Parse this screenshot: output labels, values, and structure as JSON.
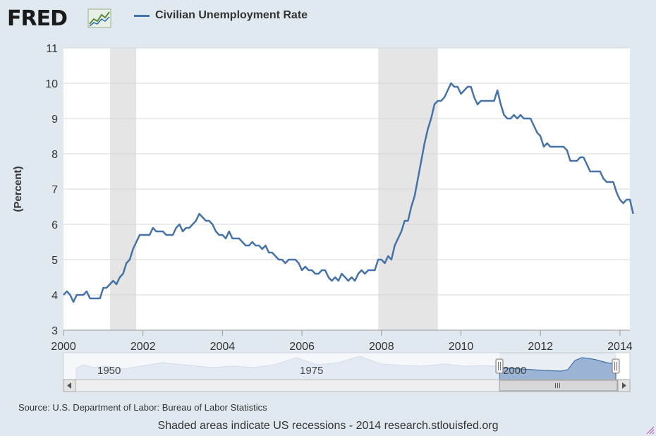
{
  "logo": {
    "text": "FRED",
    "mark": "chart-trend-icon"
  },
  "legend": {
    "label": "Civilian Unemployment Rate",
    "color": "#4572a7"
  },
  "footer": {
    "source": "Source: U.S. Department of Labor: Bureau of Labor Statistics",
    "note": "Shaded areas indicate US recessions - 2014 research.stlouisfed.org"
  },
  "navigator": {
    "labels": [
      "1950",
      "1975",
      "2000"
    ],
    "handle_icon": "grip-icon",
    "scroll_left_icon": "arrow-left-icon",
    "scroll_right_icon": "arrow-right-icon",
    "thumb_icon": "grip-lines-icon"
  },
  "chart_data": {
    "type": "line",
    "title": "",
    "xlabel": "",
    "ylabel": "(Percent)",
    "xlim": [
      2000.0,
      2014.25
    ],
    "ylim": [
      3,
      11
    ],
    "yticks": [
      3,
      4,
      5,
      6,
      7,
      8,
      9,
      10,
      11
    ],
    "xticks": [
      2000,
      2002,
      2004,
      2006,
      2008,
      2010,
      2012,
      2014
    ],
    "grid": true,
    "recessions": [
      [
        2001.17,
        2001.83
      ],
      [
        2007.92,
        2009.42
      ]
    ],
    "series": [
      {
        "name": "Civilian Unemployment Rate",
        "color": "#4572a7",
        "start_year": 2000,
        "frequency": "monthly",
        "values": [
          4.0,
          4.1,
          4.0,
          3.8,
          4.0,
          4.0,
          4.0,
          4.1,
          3.9,
          3.9,
          3.9,
          3.9,
          4.2,
          4.2,
          4.3,
          4.4,
          4.3,
          4.5,
          4.6,
          4.9,
          5.0,
          5.3,
          5.5,
          5.7,
          5.7,
          5.7,
          5.7,
          5.9,
          5.8,
          5.8,
          5.8,
          5.7,
          5.7,
          5.7,
          5.9,
          6.0,
          5.8,
          5.9,
          5.9,
          6.0,
          6.1,
          6.3,
          6.2,
          6.1,
          6.1,
          6.0,
          5.8,
          5.7,
          5.7,
          5.6,
          5.8,
          5.6,
          5.6,
          5.6,
          5.5,
          5.4,
          5.4,
          5.5,
          5.4,
          5.4,
          5.3,
          5.4,
          5.2,
          5.2,
          5.1,
          5.0,
          5.0,
          4.9,
          5.0,
          5.0,
          5.0,
          4.9,
          4.7,
          4.8,
          4.7,
          4.7,
          4.6,
          4.6,
          4.7,
          4.7,
          4.5,
          4.4,
          4.5,
          4.4,
          4.6,
          4.5,
          4.4,
          4.5,
          4.4,
          4.6,
          4.7,
          4.6,
          4.7,
          4.7,
          4.7,
          5.0,
          5.0,
          4.9,
          5.1,
          5.0,
          5.4,
          5.6,
          5.8,
          6.1,
          6.1,
          6.5,
          6.8,
          7.3,
          7.8,
          8.3,
          8.7,
          9.0,
          9.4,
          9.5,
          9.5,
          9.6,
          9.8,
          10.0,
          9.9,
          9.9,
          9.7,
          9.8,
          9.9,
          9.9,
          9.6,
          9.4,
          9.5,
          9.5,
          9.5,
          9.5,
          9.5,
          9.8,
          9.4,
          9.1,
          9.0,
          9.0,
          9.1,
          9.0,
          9.1,
          9.0,
          9.0,
          9.0,
          8.8,
          8.6,
          8.5,
          8.2,
          8.3,
          8.2,
          8.2,
          8.2,
          8.2,
          8.2,
          8.1,
          7.8,
          7.8,
          7.8,
          7.9,
          7.9,
          7.7,
          7.5,
          7.5,
          7.5,
          7.5,
          7.3,
          7.2,
          7.2,
          7.2,
          6.9,
          6.7,
          6.6,
          6.7,
          6.7,
          6.3
        ]
      }
    ]
  }
}
